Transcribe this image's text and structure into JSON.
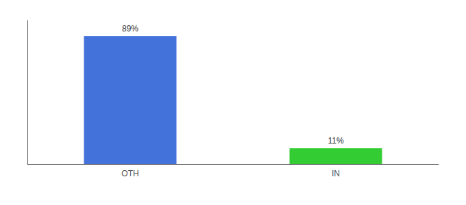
{
  "chart_data": {
    "type": "bar",
    "categories": [
      "OTH",
      "IN"
    ],
    "values": [
      89,
      11
    ],
    "value_labels": [
      "89%",
      "11%"
    ],
    "colors": [
      "#4472db",
      "#33cc33"
    ],
    "ylim": [
      0,
      100
    ],
    "data_labels": true,
    "tick_labels": "x",
    "grid": false
  }
}
